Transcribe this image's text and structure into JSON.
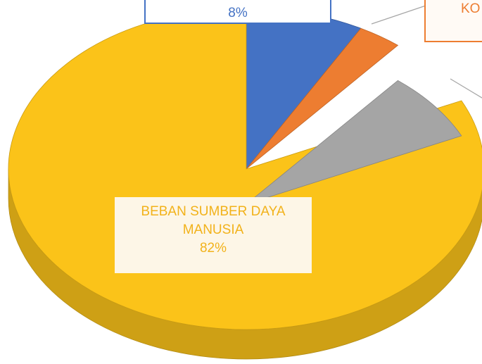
{
  "chart_data": {
    "type": "pie",
    "categories": [
      null,
      "KO",
      null,
      "BEBAN SUMBER DAYA MANUSIA"
    ],
    "values": [
      8,
      3,
      7,
      82
    ],
    "value_labels": [
      "8%",
      null,
      null,
      "82%"
    ],
    "colors": [
      "#4472c4",
      "#ed7d31",
      "#a5a5a5",
      "#fbc319"
    ]
  }
}
